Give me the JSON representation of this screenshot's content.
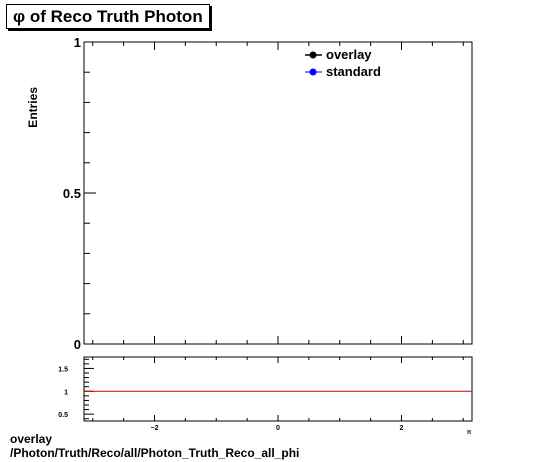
{
  "title": "φ of Reco Truth Photon",
  "footer": {
    "label": "overlay",
    "path": "/Photon/Truth/Reco/all/Photon_Truth_Reco_all_phi"
  },
  "chart_data": [
    {
      "type": "line",
      "title": "φ of Reco Truth Photon",
      "ylabel": "Entries",
      "xlabel": "",
      "xlim": [
        -3.14159,
        3.14159
      ],
      "ylim": [
        0,
        1
      ],
      "y_ticks": [
        "0",
        "0.5",
        "1"
      ],
      "legend_position": "top-right",
      "series": [
        {
          "name": "overlay",
          "color": "#000000",
          "x": [],
          "y": []
        },
        {
          "name": "standard",
          "color": "#0000ff",
          "x": [],
          "y": []
        }
      ]
    },
    {
      "type": "line",
      "title": "",
      "xlim": [
        -3.14159,
        3.14159
      ],
      "ylim": [
        0.35,
        1.75
      ],
      "y_ticks": [
        "0.5",
        "1",
        "1.5"
      ],
      "x_ticks": [
        "−2",
        "0",
        "2"
      ],
      "x_edge_label": "π",
      "reference_line": {
        "y": 1,
        "color": "#cc0000"
      },
      "series": []
    }
  ]
}
